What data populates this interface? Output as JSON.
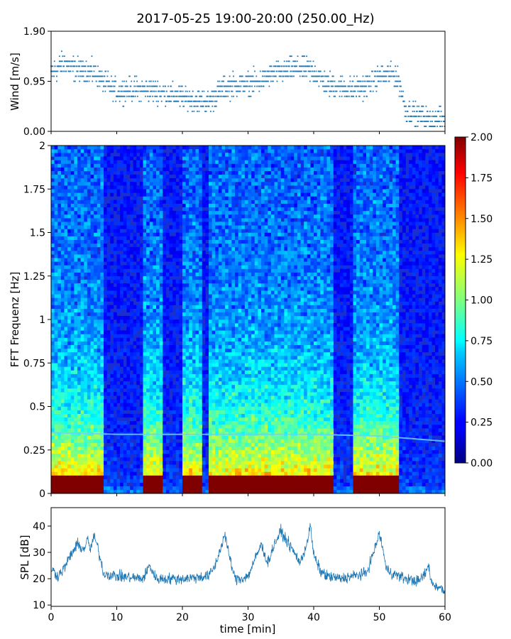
{
  "title": "2017-05-25 19:00-20:00 (250.00_Hz)",
  "xlabel": "time [min]",
  "chart_data": [
    {
      "type": "scatter",
      "panel": "wind",
      "ylabel": "Wind [m/s]",
      "xlim": [
        0,
        60
      ],
      "ylim": [
        0,
        1.9
      ],
      "yticks": [
        "0.00",
        "0.95",
        "1.90"
      ],
      "quantization_step": 0.095,
      "color": "#1f77b4",
      "mean_level_profile": {
        "x": [
          0,
          2,
          4,
          6,
          8,
          10,
          12,
          15,
          20,
          24,
          26,
          28,
          30,
          32,
          34,
          36,
          38,
          40,
          42,
          44,
          46,
          48,
          50,
          52,
          53,
          54,
          56,
          58,
          60
        ],
        "y": [
          1.1,
          1.3,
          1.15,
          1.15,
          0.95,
          0.75,
          0.8,
          0.8,
          0.65,
          0.55,
          0.8,
          0.9,
          0.9,
          0.95,
          1.1,
          1.15,
          1.2,
          1.15,
          0.9,
          0.85,
          0.8,
          0.85,
          1.05,
          1.1,
          0.95,
          0.4,
          0.3,
          0.2,
          0.25
        ]
      }
    },
    {
      "type": "heatmap",
      "panel": "spectrogram",
      "ylabel": "FFT Frequenz [Hz]",
      "xlim": [
        0,
        60
      ],
      "ylim": [
        0,
        2
      ],
      "yticks": [
        "0",
        "0.25",
        "0.5",
        "0.75",
        "1",
        "1.25",
        "1.5",
        "1.75",
        "2"
      ],
      "colormap": "jet",
      "colorbar": {
        "range": [
          0,
          2
        ],
        "ticks": [
          "0.00",
          "0.25",
          "0.50",
          "0.75",
          "1.00",
          "1.25",
          "1.50",
          "1.75",
          "2.00"
        ]
      },
      "tonal_line": {
        "x": [
          0,
          10,
          20,
          30,
          40,
          50,
          60
        ],
        "freq_hz": [
          0.35,
          0.34,
          0.34,
          0.34,
          0.34,
          0.33,
          0.3
        ]
      },
      "active_bursts_min": [
        [
          0,
          8
        ],
        [
          14,
          17
        ],
        [
          20,
          23
        ],
        [
          24,
          30
        ],
        [
          30,
          33
        ],
        [
          33,
          37
        ],
        [
          37,
          43
        ],
        [
          46,
          50
        ],
        [
          50,
          53
        ]
      ]
    },
    {
      "type": "line",
      "panel": "spl",
      "ylabel": "SPL [dB]",
      "xlim": [
        0,
        60
      ],
      "ylim": [
        9.5,
        47
      ],
      "yticks": [
        "10",
        "20",
        "30",
        "40"
      ],
      "xticks": [
        "0",
        "10",
        "20",
        "30",
        "40",
        "50",
        "60"
      ],
      "color": "#1f77b4",
      "envelope": {
        "x": [
          0,
          1,
          2,
          3,
          4,
          5,
          5.5,
          6,
          6.5,
          7,
          8,
          10,
          14,
          15,
          16,
          20,
          24,
          25,
          26,
          26.5,
          27,
          28,
          29,
          30,
          31,
          32,
          33,
          34,
          35,
          36,
          37,
          38,
          39,
          39.5,
          40,
          41,
          42,
          44,
          46,
          48,
          49,
          50,
          50.5,
          51,
          52,
          54,
          56,
          57,
          57.5,
          58,
          59,
          60
        ],
        "y": [
          24,
          21,
          24,
          29,
          33,
          31,
          35,
          31,
          36,
          33,
          22,
          21,
          20,
          25,
          20,
          20,
          21,
          25,
          33,
          37,
          30,
          20,
          20,
          21,
          27,
          33,
          26,
          33,
          38,
          34,
          30,
          26,
          34,
          40,
          29,
          23,
          21,
          20,
          21,
          22,
          29,
          37,
          32,
          24,
          22,
          20,
          19,
          22,
          25,
          18,
          17,
          15
        ]
      }
    }
  ]
}
